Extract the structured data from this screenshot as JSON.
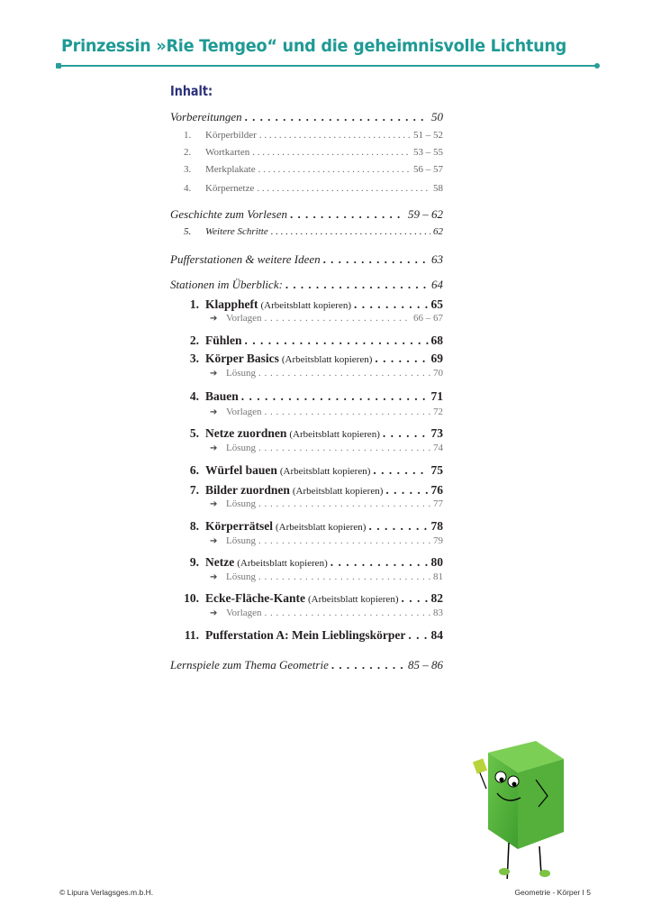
{
  "header": {
    "title": "Prinzessin »Rie Temgeo“ und die geheimnisvolle Lichtung",
    "accent_color": "#1f9a95"
  },
  "toc": {
    "heading": "Inhalt:",
    "entries": [
      {
        "level": "main",
        "label": "Vorbereitungen",
        "page": "50"
      },
      {
        "level": "sub",
        "num": "1.",
        "label": "Körperbilder",
        "page": "51 – 52"
      },
      {
        "level": "sub",
        "num": "2.",
        "label": "Wortkarten",
        "page": "53 – 55"
      },
      {
        "level": "sub",
        "num": "3.",
        "label": "Merkplakate",
        "page": "56 – 57"
      },
      {
        "level": "sub",
        "num": "4.",
        "label": "Körpernetze",
        "page": "58"
      },
      {
        "level": "main",
        "label": "Geschichte zum Vorlesen",
        "page": "59 – 62"
      },
      {
        "level": "subi",
        "num": "5.",
        "label": "Weitere Schritte",
        "page": "62"
      },
      {
        "level": "main",
        "label": "Pufferstationen & weitere Ideen",
        "page": "63"
      },
      {
        "level": "main",
        "label": "Stationen im Überblick:",
        "page": "64"
      },
      {
        "level": "station",
        "num": "1.",
        "label": "Klappheft",
        "note": "(Arbeitsblatt kopieren)",
        "page": "65"
      },
      {
        "level": "arrow",
        "label": "Vorlagen",
        "page": "66 – 67"
      },
      {
        "level": "station",
        "num": "2.",
        "label": "Fühlen",
        "page": "68"
      },
      {
        "level": "station",
        "num": "3.",
        "label": "Körper Basics",
        "note": "(Arbeitsblatt kopieren)",
        "page": "69"
      },
      {
        "level": "arrow",
        "label": "Lösung",
        "page": "70"
      },
      {
        "level": "station",
        "num": "4.",
        "label": "Bauen",
        "page": "71"
      },
      {
        "level": "arrow",
        "label": "Vorlagen",
        "page": "72"
      },
      {
        "level": "station",
        "num": "5.",
        "label": "Netze zuordnen",
        "note": "(Arbeitsblatt kopieren)",
        "page": "73"
      },
      {
        "level": "arrow",
        "label": "Lösung",
        "page": "74"
      },
      {
        "level": "station",
        "num": "6.",
        "label": "Würfel bauen",
        "note": "(Arbeitsblatt kopieren)",
        "page": "75"
      },
      {
        "level": "station",
        "num": "7.",
        "label": "Bilder zuordnen",
        "note": "(Arbeitsblatt kopieren)",
        "page": "76"
      },
      {
        "level": "arrow",
        "label": "Lösung",
        "page": "77"
      },
      {
        "level": "station",
        "num": "8.",
        "label": "Körperrätsel",
        "note": "(Arbeitsblatt kopieren)",
        "page": "78"
      },
      {
        "level": "arrow",
        "label": "Lösung",
        "page": "79"
      },
      {
        "level": "station",
        "num": "9.",
        "label": "Netze",
        "note": "(Arbeitsblatt kopieren)",
        "page": "80"
      },
      {
        "level": "arrow",
        "label": "Lösung",
        "page": "81"
      },
      {
        "level": "station",
        "num": "10.",
        "label": "Ecke-Fläche-Kante",
        "note": "(Arbeitsblatt kopieren)",
        "page": "82"
      },
      {
        "level": "arrow",
        "label": "Vorlagen",
        "page": "83"
      },
      {
        "level": "station",
        "num": "11.",
        "label": "Pufferstation A: Mein Lieblingskörper",
        "page": "84"
      },
      {
        "level": "main",
        "label": "Lernspiele zum Thema Geometrie",
        "page": "85 – 86"
      }
    ]
  },
  "footer": {
    "copyright": "© Lipura Verlagsges.m.b.H.",
    "page_label": "Geometrie - Körper  I  5"
  },
  "illustration": {
    "name": "green-cube-character",
    "color": "#5cb83a"
  }
}
